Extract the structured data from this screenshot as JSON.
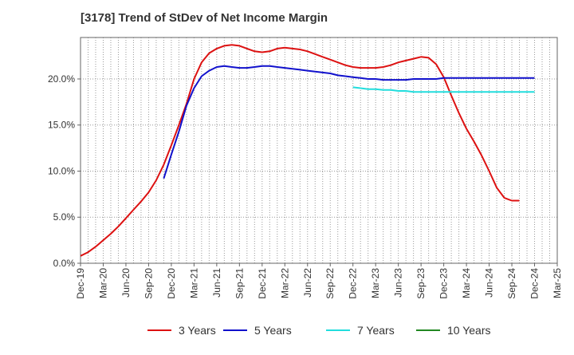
{
  "chart_data": {
    "type": "line",
    "title": "[3178]  Trend of StDev of Net Income Margin",
    "xlabel": "",
    "ylabel": "",
    "x_ticks": [
      "Dec-19",
      "Mar-20",
      "Jun-20",
      "Sep-20",
      "Dec-20",
      "Mar-21",
      "Jun-21",
      "Sep-21",
      "Dec-21",
      "Mar-22",
      "Jun-22",
      "Sep-22",
      "Dec-22",
      "Mar-23",
      "Jun-23",
      "Sep-23",
      "Dec-23",
      "Mar-24",
      "Jun-24",
      "Sep-24",
      "Dec-24",
      "Mar-25"
    ],
    "y_ticks": [
      "0.0%",
      "5.0%",
      "10.0%",
      "15.0%",
      "20.0%"
    ],
    "y_tick_values": [
      0,
      5,
      10,
      15,
      20
    ],
    "ylim": [
      0,
      24.5
    ],
    "xlim": [
      "Dec-19",
      "Mar-25"
    ],
    "grid": true,
    "legend_position": "bottom",
    "series": [
      {
        "name": "3 Years",
        "color": "#dd1111",
        "x": [
          "Dec-19",
          "Jan-20",
          "Feb-20",
          "Mar-20",
          "Apr-20",
          "May-20",
          "Jun-20",
          "Jul-20",
          "Aug-20",
          "Sep-20",
          "Oct-20",
          "Nov-20",
          "Dec-20",
          "Jan-21",
          "Feb-21",
          "Mar-21",
          "Apr-21",
          "May-21",
          "Jun-21",
          "Jul-21",
          "Aug-21",
          "Sep-21",
          "Oct-21",
          "Nov-21",
          "Dec-21",
          "Jan-22",
          "Feb-22",
          "Mar-22",
          "Apr-22",
          "May-22",
          "Jun-22",
          "Jul-22",
          "Aug-22",
          "Sep-22",
          "Oct-22",
          "Nov-22",
          "Dec-22",
          "Jan-23",
          "Feb-23",
          "Mar-23",
          "Apr-23",
          "May-23",
          "Jun-23",
          "Jul-23",
          "Aug-23",
          "Sep-23",
          "Oct-23",
          "Nov-23",
          "Dec-23",
          "Jan-24",
          "Feb-24",
          "Mar-24",
          "Apr-24",
          "May-24",
          "Jun-24",
          "Jul-24",
          "Aug-24",
          "Sep-24",
          "Oct-24",
          "Nov-24",
          "Dec-24"
        ],
        "values": [
          0.8,
          1.2,
          1.8,
          2.5,
          3.2,
          4.0,
          4.9,
          5.8,
          6.7,
          7.7,
          9.0,
          10.7,
          12.8,
          15.0,
          17.3,
          20.0,
          21.8,
          22.8,
          23.3,
          23.6,
          23.7,
          23.6,
          23.3,
          23.0,
          22.9,
          23.0,
          23.3,
          23.4,
          23.3,
          23.2,
          23.0,
          22.7,
          22.4,
          22.1,
          21.8,
          21.5,
          21.3,
          21.2,
          21.2,
          21.2,
          21.3,
          21.5,
          21.8,
          22.0,
          22.2,
          22.4,
          22.3,
          21.6,
          20.2,
          18.2,
          16.3,
          14.6,
          13.2,
          11.7,
          10.0,
          8.2,
          7.1,
          6.8,
          6.8,
          null,
          null
        ],
        "x_note": "",
        "values_note": ""
      },
      {
        "name": "5 Years",
        "color": "#1111cc",
        "x": [
          "Nov-20",
          "Dec-20",
          "Jan-21",
          "Feb-21",
          "Mar-21",
          "Apr-21",
          "May-21",
          "Jun-21",
          "Jul-21",
          "Aug-21",
          "Sep-21",
          "Oct-21",
          "Nov-21",
          "Dec-21",
          "Jan-22",
          "Feb-22",
          "Mar-22",
          "Apr-22",
          "May-22",
          "Jun-22",
          "Jul-22",
          "Aug-22",
          "Sep-22",
          "Oct-22",
          "Nov-22",
          "Dec-22",
          "Jan-23",
          "Feb-23",
          "Mar-23",
          "Apr-23",
          "May-23",
          "Jun-23",
          "Jul-23",
          "Aug-23",
          "Sep-23",
          "Oct-23",
          "Nov-23",
          "Dec-23",
          "Jan-24",
          "Feb-24",
          "Mar-24",
          "Apr-24",
          "May-24",
          "Jun-24",
          "Jul-24",
          "Aug-24",
          "Sep-24",
          "Oct-24",
          "Nov-24",
          "Dec-24"
        ],
        "values": [
          9.2,
          11.8,
          14.3,
          17.1,
          19.0,
          20.3,
          20.9,
          21.3,
          21.4,
          21.3,
          21.2,
          21.2,
          21.3,
          21.4,
          21.4,
          21.3,
          21.2,
          21.1,
          21.0,
          20.9,
          20.8,
          20.7,
          20.6,
          20.4,
          20.3,
          20.2,
          20.1,
          20.0,
          20.0,
          19.9,
          19.9,
          19.9,
          19.9,
          20.0,
          20.0,
          20.0,
          20.0,
          20.1,
          20.1,
          20.1,
          20.1,
          20.1,
          20.1,
          20.1,
          20.1,
          20.1,
          20.1,
          20.1,
          20.1,
          20.1
        ]
      },
      {
        "name": "7 Years",
        "color": "#22dddd",
        "x": [
          "Dec-22",
          "Jan-23",
          "Feb-23",
          "Mar-23",
          "Apr-23",
          "May-23",
          "Jun-23",
          "Jul-23",
          "Aug-23",
          "Sep-23",
          "Oct-23",
          "Nov-23",
          "Dec-23",
          "Jan-24",
          "Feb-24",
          "Mar-24",
          "Apr-24",
          "May-24",
          "Jun-24",
          "Jul-24",
          "Aug-24",
          "Sep-24",
          "Oct-24",
          "Nov-24",
          "Dec-24"
        ],
        "values": [
          19.1,
          19.0,
          18.9,
          18.9,
          18.8,
          18.8,
          18.7,
          18.7,
          18.6,
          18.6,
          18.6,
          18.6,
          18.6,
          18.6,
          18.6,
          18.6,
          18.6,
          18.6,
          18.6,
          18.6,
          18.6,
          18.6,
          18.6,
          18.6,
          18.6
        ]
      },
      {
        "name": "10 Years",
        "color": "#228822",
        "x": [],
        "values": []
      }
    ]
  }
}
